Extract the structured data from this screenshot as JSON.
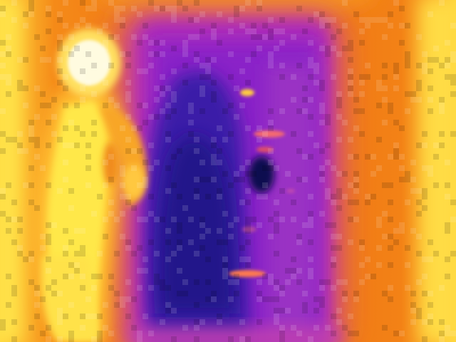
{
  "image": {
    "palette": {
      "hot_white": "#fffbe0",
      "hot_yellow": "#ffe84a",
      "warm_orange": "#f5901c",
      "mid_orange": "#ec6a12",
      "cool_magenta": "#b82bb4",
      "cool_purple": "#7a22c4",
      "cold_indigo": "#3a1ea8",
      "cold_navy": "#1a1270"
    }
  }
}
